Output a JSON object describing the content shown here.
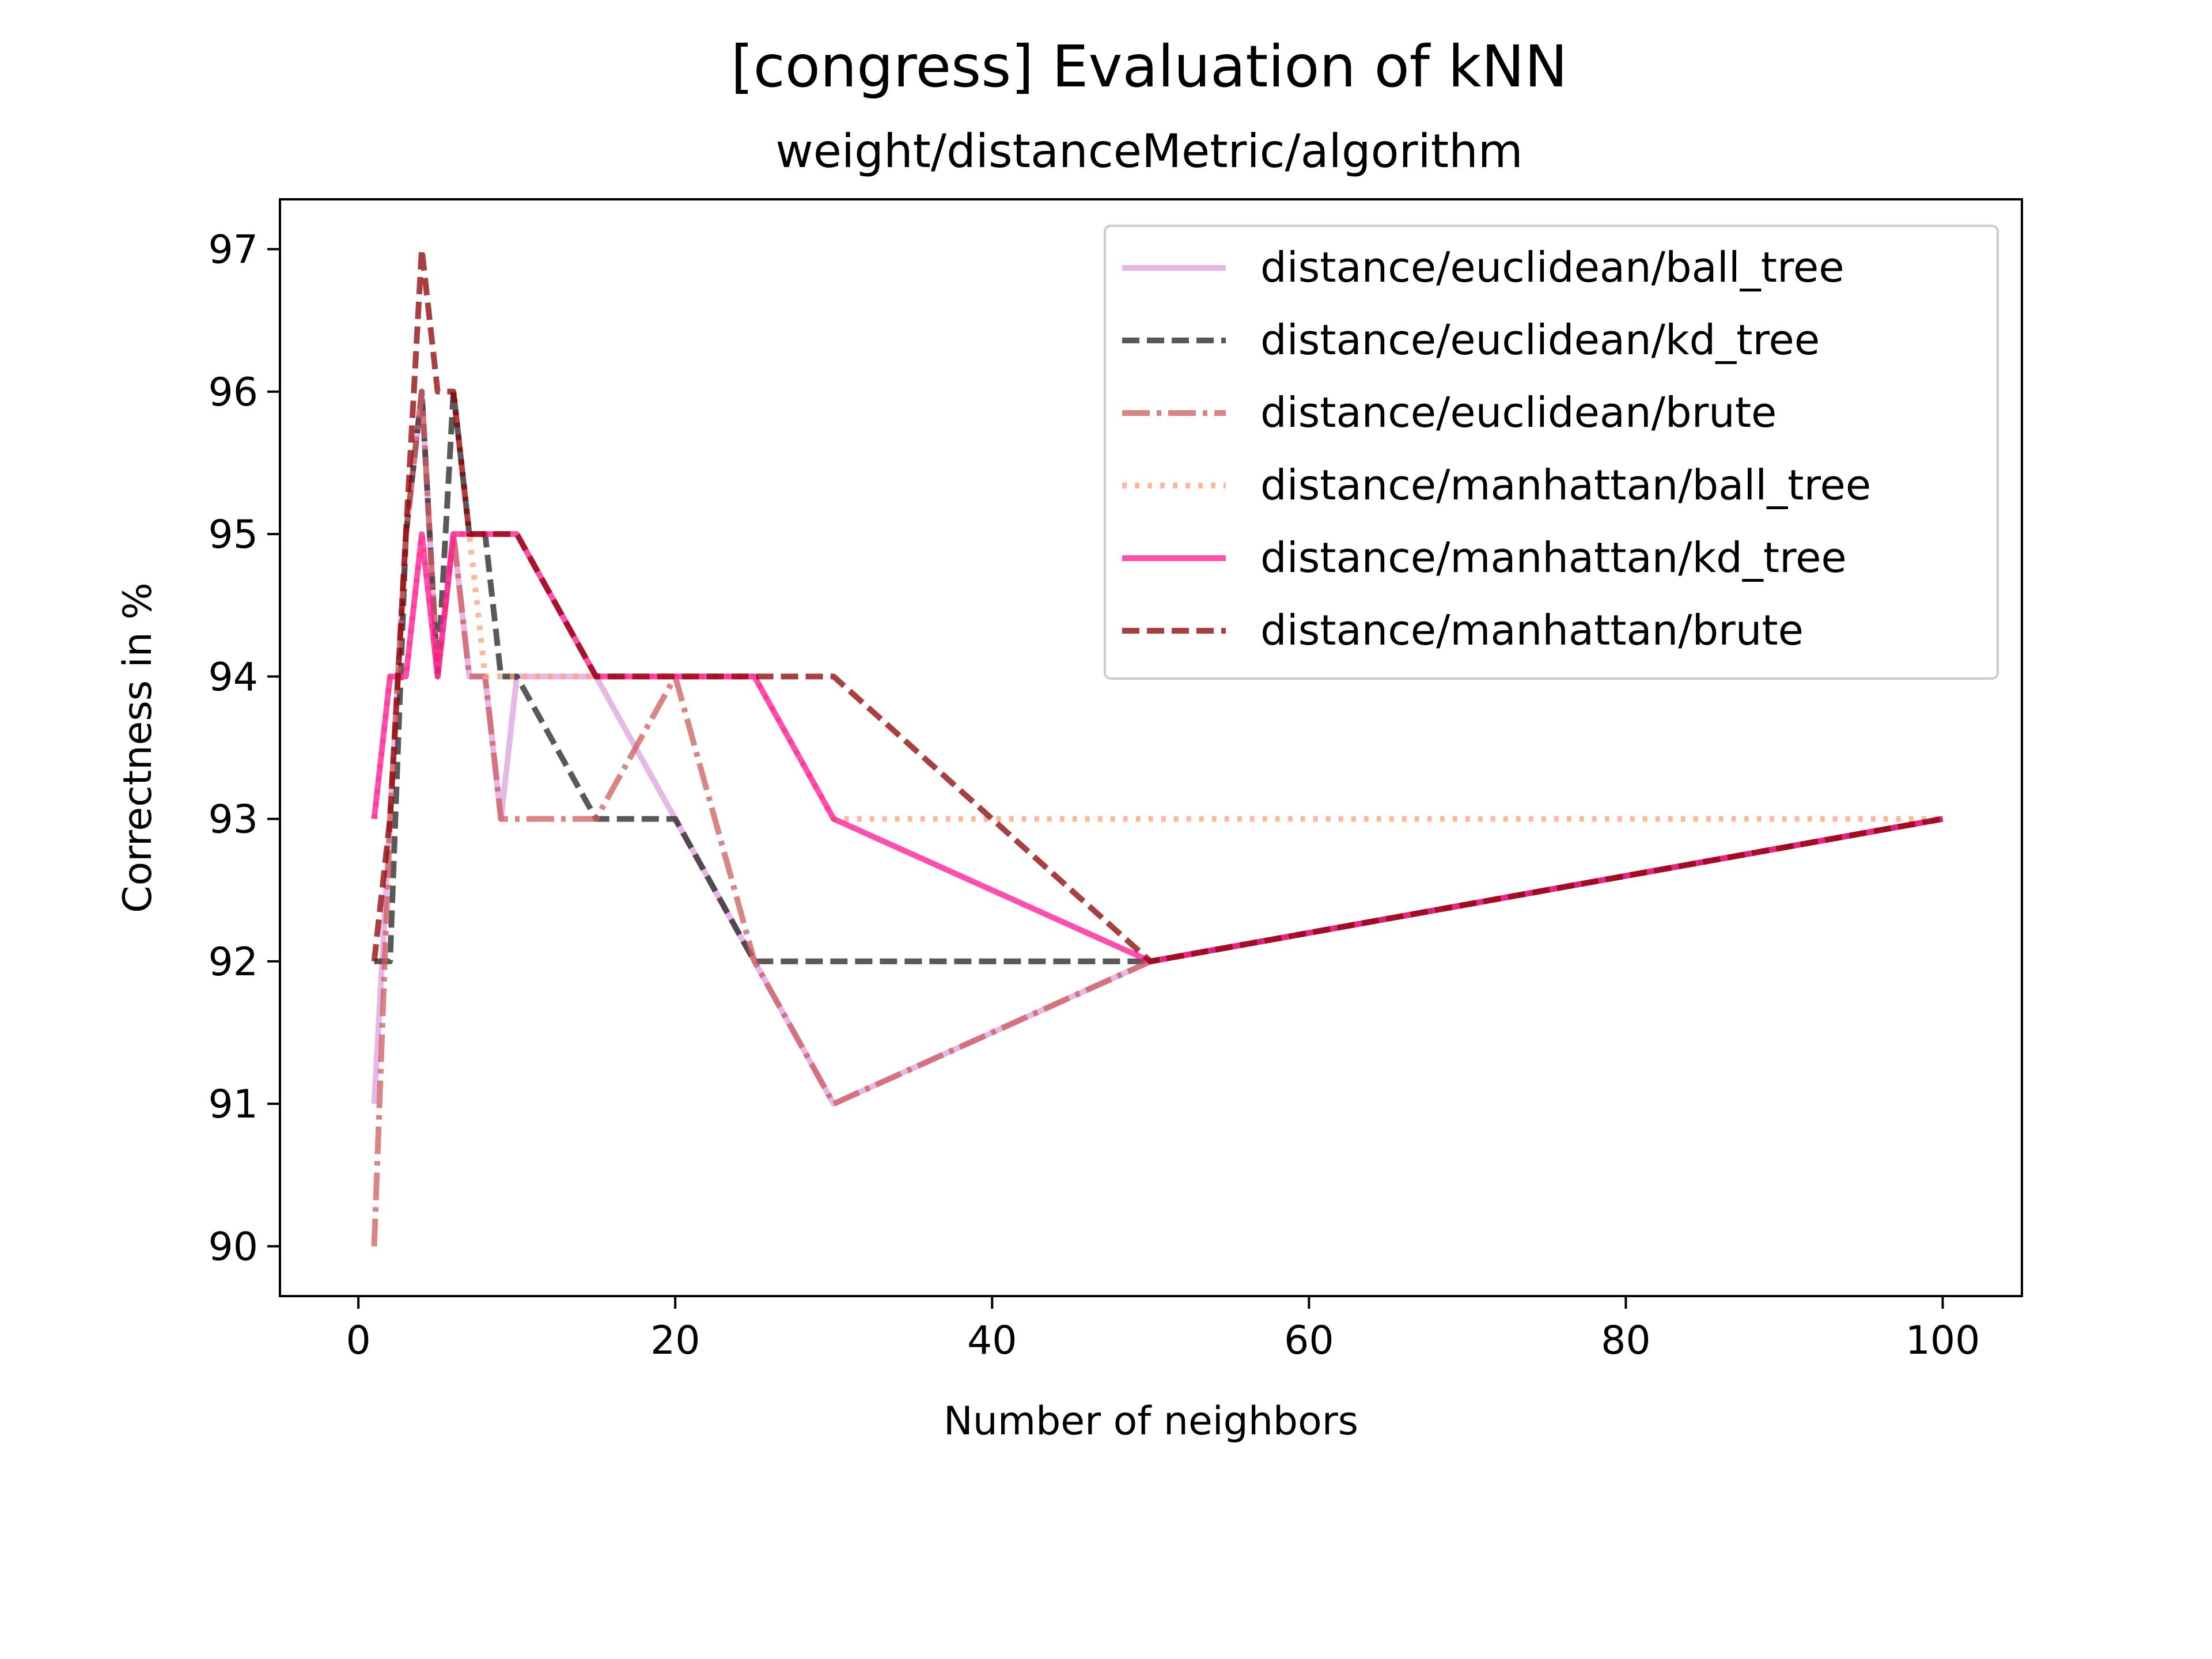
{
  "chart_data": {
    "type": "line",
    "title": "[congress] Evaluation of kNN",
    "subtitle": "weight/distanceMetric/algorithm",
    "xlabel": "Number of neighbors",
    "ylabel": "Correctness in %",
    "xlim": [
      -4.95,
      105.0
    ],
    "ylim": [
      89.65,
      97.35
    ],
    "xticks": [
      0,
      20,
      40,
      60,
      80,
      100
    ],
    "yticks": [
      90,
      91,
      92,
      93,
      94,
      95,
      96,
      97
    ],
    "grid": false,
    "legend_position": "upper right",
    "series": [
      {
        "name": "distance/euclidean/ball_tree",
        "color": "#dda0dd",
        "dash": "solid",
        "x": [
          1,
          2,
          3,
          4,
          5,
          6,
          7,
          8,
          9,
          10,
          15,
          20,
          25,
          30,
          50,
          100
        ],
        "y": [
          91,
          93,
          95,
          96,
          94,
          95,
          94,
          94,
          93,
          94,
          94,
          93,
          92,
          91,
          92,
          93
        ]
      },
      {
        "name": "distance/euclidean/kd_tree",
        "color": "#222222",
        "dash": "dashed",
        "x": [
          1,
          2,
          3,
          4,
          5,
          6,
          7,
          8,
          9,
          10,
          15,
          20,
          25,
          30,
          50,
          100
        ],
        "y": [
          92,
          92,
          95,
          96,
          94,
          96,
          95,
          95,
          94,
          94,
          93,
          93,
          92,
          92,
          92,
          93
        ]
      },
      {
        "name": "distance/euclidean/brute",
        "color": "#cd5c5c",
        "dash": "dashdot",
        "x": [
          1,
          2,
          3,
          4,
          5,
          6,
          7,
          8,
          9,
          10,
          15,
          20,
          25,
          30,
          50,
          100
        ],
        "y": [
          90,
          93,
          95,
          96,
          94,
          95,
          94,
          94,
          93,
          93,
          93,
          94,
          92,
          91,
          92,
          93
        ]
      },
      {
        "name": "distance/manhattan/ball_tree",
        "color": "#ffa07a",
        "dash": "dotted",
        "x": [
          1,
          2,
          3,
          4,
          5,
          6,
          7,
          8,
          9,
          10,
          15,
          20,
          25,
          30,
          50,
          100
        ],
        "y": [
          93,
          94,
          94,
          95,
          94,
          95,
          95,
          94,
          94,
          94,
          94,
          94,
          94,
          93,
          93,
          93
        ]
      },
      {
        "name": "distance/manhattan/kd_tree",
        "color": "#ff1493",
        "dash": "solid",
        "x": [
          1,
          2,
          3,
          4,
          5,
          6,
          7,
          8,
          9,
          10,
          15,
          20,
          25,
          30,
          50,
          100
        ],
        "y": [
          93,
          94,
          94,
          95,
          94,
          95,
          95,
          95,
          95,
          95,
          94,
          94,
          94,
          93,
          92,
          93
        ]
      },
      {
        "name": "distance/manhattan/brute",
        "color": "#8b0000",
        "dash": "dashed",
        "x": [
          1,
          2,
          3,
          4,
          5,
          6,
          7,
          8,
          9,
          10,
          15,
          20,
          25,
          30,
          50,
          100
        ],
        "y": [
          92,
          93,
          95,
          97,
          96,
          96,
          95,
          95,
          95,
          95,
          94,
          94,
          94,
          94,
          92,
          93
        ]
      }
    ]
  }
}
